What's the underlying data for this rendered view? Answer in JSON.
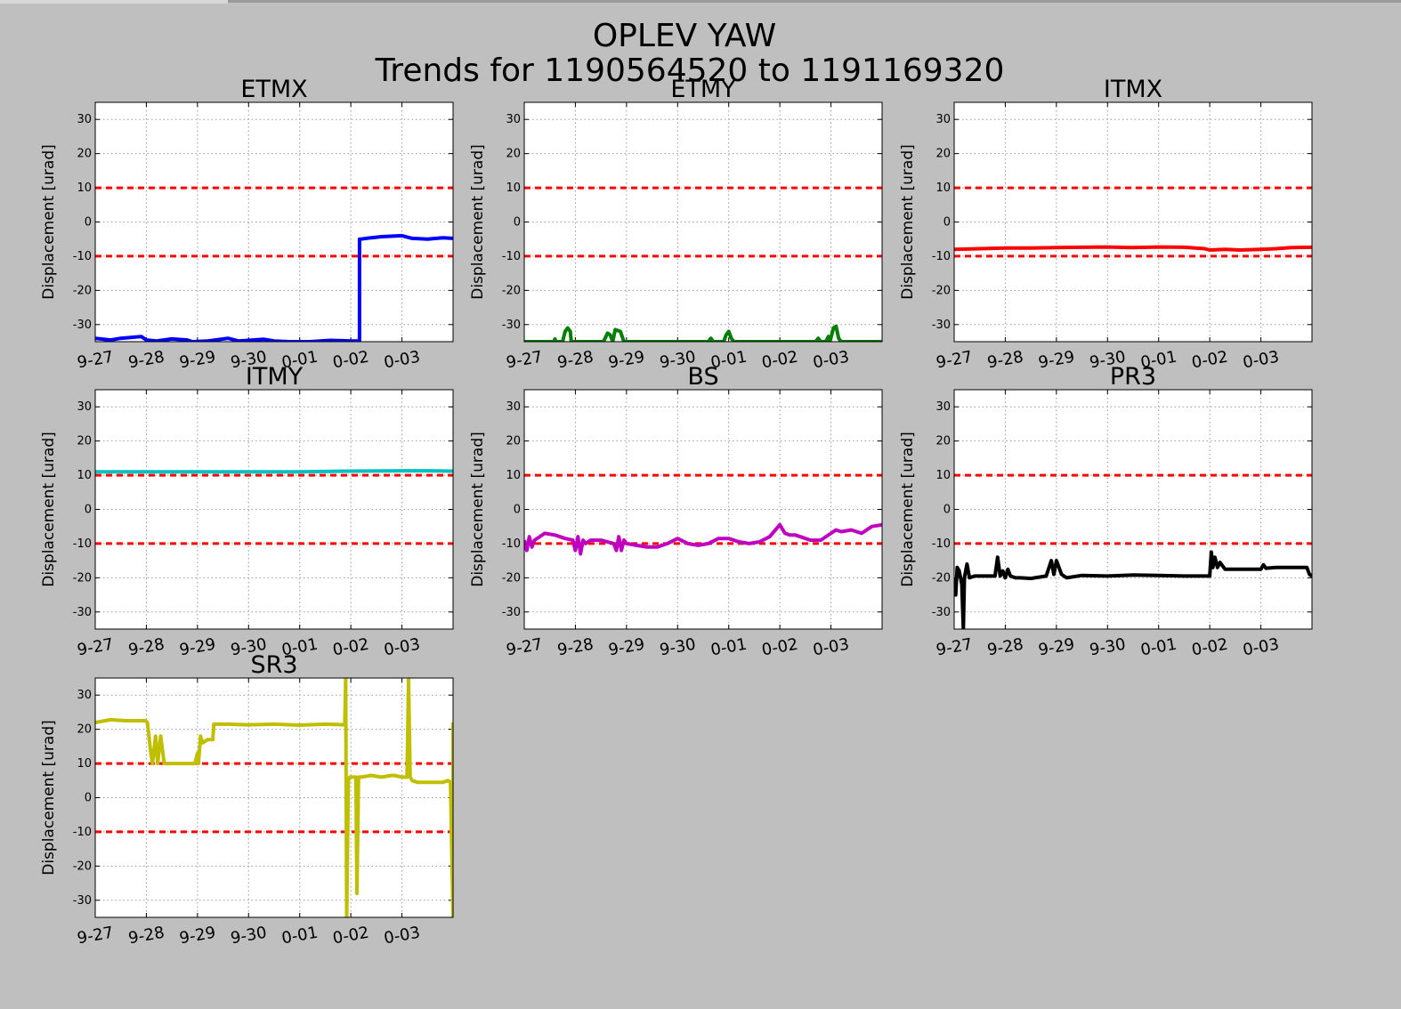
{
  "figure": {
    "title_line1": "OPLEV YAW",
    "title_line2": "Trends for 1190564520 to 1191169320"
  },
  "colors": {
    "background": "#bfbfbf",
    "plot_area": "#ffffff",
    "threshold": "#ff0000",
    "grid": "#999999"
  },
  "chart_data": [
    {
      "type": "line",
      "title": "ETMX",
      "ylabel": "Displacement [urad]",
      "xticks": [
        "9-27",
        "9-28",
        "9-29",
        "9-30",
        "0-01",
        "0-02",
        "0-03"
      ],
      "yticks": [
        30,
        20,
        10,
        0,
        -10,
        -20,
        -30
      ],
      "ylim": [
        -35,
        35
      ],
      "xlim": [
        0,
        7
      ],
      "grid": true,
      "thresholds": [
        10,
        -10
      ],
      "color": "#0000ff",
      "x": [
        0,
        0.3,
        0.5,
        0.9,
        1.0,
        1.2,
        1.5,
        1.8,
        1.9,
        2.2,
        2.6,
        2.8,
        3.0,
        3.3,
        3.5,
        3.8,
        4.2,
        4.6,
        5.0,
        5.17,
        5.17,
        5.2,
        5.4,
        5.6,
        6.0,
        6.2,
        6.5,
        6.8,
        7.0
      ],
      "y": [
        -34,
        -34.5,
        -34,
        -33.5,
        -34.5,
        -34.8,
        -34.2,
        -34.5,
        -35,
        -34.8,
        -34,
        -34.8,
        -34.6,
        -34.3,
        -34.8,
        -35,
        -35,
        -34.6,
        -34.8,
        -34.8,
        -5,
        -5,
        -4.6,
        -4.3,
        -4,
        -4.8,
        -5,
        -4.6,
        -4.8
      ]
    },
    {
      "type": "line",
      "title": "ETMY",
      "ylabel": "Displacement [urad]",
      "xticks": [
        "9-27",
        "9-28",
        "9-29",
        "9-30",
        "0-01",
        "0-02",
        "0-03"
      ],
      "yticks": [
        30,
        20,
        10,
        0,
        -10,
        -20,
        -30
      ],
      "ylim": [
        -35,
        35
      ],
      "xlim": [
        0,
        7
      ],
      "grid": true,
      "thresholds": [
        10,
        -10
      ],
      "color": "#007f00",
      "x": [
        0,
        0.58,
        0.6,
        0.62,
        0.75,
        0.8,
        0.85,
        0.9,
        0.92,
        1.0,
        1.55,
        1.63,
        1.68,
        1.73,
        1.78,
        1.88,
        1.95,
        2.0,
        3.6,
        3.65,
        3.7,
        3.75,
        3.9,
        3.95,
        4.0,
        4.05,
        4.1,
        4.2,
        5.7,
        5.75,
        5.8,
        5.9,
        5.95,
        5.98,
        6.05,
        6.1,
        6.15,
        6.2,
        7.0
      ],
      "y": [
        -35,
        -35,
        -34.2,
        -35,
        -35,
        -32,
        -31,
        -32,
        -35,
        -35,
        -35,
        -32.5,
        -33,
        -35,
        -31.5,
        -32,
        -35,
        -35,
        -35,
        -34,
        -35,
        -35,
        -35,
        -33,
        -32,
        -34,
        -35,
        -35,
        -35,
        -34,
        -35,
        -35,
        -33.5,
        -35,
        -31,
        -30.5,
        -34,
        -35,
        -35
      ]
    },
    {
      "type": "line",
      "title": "ITMX",
      "ylabel": "Displacement [urad]",
      "xticks": [
        "9-27",
        "9-28",
        "9-29",
        "9-30",
        "0-01",
        "0-02",
        "0-03"
      ],
      "yticks": [
        30,
        20,
        10,
        0,
        -10,
        -20,
        -30
      ],
      "ylim": [
        -35,
        35
      ],
      "xlim": [
        0,
        7
      ],
      "grid": true,
      "thresholds": [
        10,
        -10
      ],
      "color": "#ff0000",
      "x": [
        0,
        0.5,
        1.0,
        1.5,
        2.0,
        2.5,
        3.0,
        3.5,
        4.0,
        4.5,
        4.9,
        5.0,
        5.3,
        5.6,
        6.0,
        6.3,
        6.6,
        7.0
      ],
      "y": [
        -8,
        -7.8,
        -7.6,
        -7.6,
        -7.5,
        -7.4,
        -7.3,
        -7.5,
        -7.3,
        -7.4,
        -7.8,
        -8.2,
        -8,
        -8.2,
        -8,
        -7.8,
        -7.5,
        -7.4
      ]
    },
    {
      "type": "line",
      "title": "ITMY",
      "ylabel": "Displacement [urad]",
      "xticks": [
        "9-27",
        "9-28",
        "9-29",
        "9-30",
        "0-01",
        "0-02",
        "0-03"
      ],
      "yticks": [
        30,
        20,
        10,
        0,
        -10,
        -20,
        -30
      ],
      "ylim": [
        -35,
        35
      ],
      "xlim": [
        0,
        7
      ],
      "grid": true,
      "thresholds": [
        10,
        -10
      ],
      "color": "#00bfbf",
      "x": [
        0,
        1,
        2,
        3,
        4,
        5,
        6,
        6.5,
        7.0
      ],
      "y": [
        11,
        11,
        11,
        11,
        11,
        11.2,
        11.3,
        11.3,
        11.2
      ]
    },
    {
      "type": "line",
      "title": "BS",
      "ylabel": "Displacement [urad]",
      "xticks": [
        "9-27",
        "9-28",
        "9-29",
        "9-30",
        "0-01",
        "0-02",
        "0-03"
      ],
      "yticks": [
        30,
        20,
        10,
        0,
        -10,
        -20,
        -30
      ],
      "ylim": [
        -35,
        35
      ],
      "xlim": [
        0,
        7
      ],
      "grid": true,
      "thresholds": [
        10,
        -10
      ],
      "color": "#bf00bf",
      "x": [
        0,
        0.05,
        0.1,
        0.15,
        0.2,
        0.4,
        0.6,
        0.8,
        0.95,
        1.0,
        1.05,
        1.1,
        1.15,
        1.2,
        1.3,
        1.5,
        1.75,
        1.8,
        1.85,
        1.9,
        1.95,
        2.0,
        2.2,
        2.4,
        2.6,
        2.8,
        3.0,
        3.2,
        3.4,
        3.6,
        3.8,
        4.0,
        4.2,
        4.4,
        4.6,
        4.8,
        5.0,
        5.1,
        5.2,
        5.3,
        5.4,
        5.6,
        5.8,
        6.0,
        6.1,
        6.2,
        6.4,
        6.6,
        6.8,
        7.0
      ],
      "y": [
        -9,
        -12,
        -8,
        -11,
        -9,
        -7,
        -7.5,
        -8.5,
        -9,
        -12,
        -8,
        -13,
        -9,
        -10,
        -9,
        -9,
        -10,
        -12,
        -8,
        -12,
        -9,
        -10,
        -10.5,
        -11,
        -11,
        -10,
        -8.5,
        -10,
        -10.5,
        -10,
        -8.5,
        -8.5,
        -9.5,
        -10,
        -9.5,
        -8,
        -4.5,
        -7,
        -7.5,
        -7.5,
        -8,
        -9,
        -9,
        -7,
        -6,
        -6.5,
        -6,
        -7,
        -5,
        -4.5
      ]
    },
    {
      "type": "line",
      "title": "PR3",
      "ylabel": "Displacement [urad]",
      "xticks": [
        "9-27",
        "9-28",
        "9-29",
        "9-30",
        "0-01",
        "0-02",
        "0-03"
      ],
      "yticks": [
        30,
        20,
        10,
        0,
        -10,
        -20,
        -30
      ],
      "ylim": [
        -35,
        35
      ],
      "xlim": [
        0,
        7
      ],
      "grid": true,
      "thresholds": [
        10,
        -10
      ],
      "color": "#000000",
      "x": [
        0,
        0.03,
        0.06,
        0.1,
        0.15,
        0.18,
        0.2,
        0.25,
        0.3,
        0.4,
        0.5,
        0.6,
        0.8,
        0.85,
        0.9,
        0.95,
        1.0,
        1.05,
        1.1,
        1.2,
        1.3,
        1.5,
        1.8,
        1.9,
        1.95,
        2.0,
        2.1,
        2.2,
        2.5,
        3.0,
        3.5,
        4.0,
        4.5,
        5.0,
        5.03,
        5.06,
        5.1,
        5.15,
        5.2,
        5.3,
        5.5,
        6.0,
        6.05,
        6.1,
        6.3,
        6.5,
        6.9,
        6.95,
        7.0
      ],
      "y": [
        -20,
        -25,
        -17,
        -18,
        -22,
        -35,
        -20,
        -16,
        -20,
        -19.5,
        -19.5,
        -19.5,
        -19.5,
        -14,
        -19.5,
        -18,
        -20,
        -17.5,
        -19.5,
        -20,
        -20,
        -20.2,
        -19.5,
        -15,
        -19,
        -15,
        -19,
        -20,
        -19.3,
        -19.5,
        -19.2,
        -19.3,
        -19.5,
        -19.5,
        -12.5,
        -17,
        -14,
        -17,
        -15.5,
        -17.5,
        -17.5,
        -17.5,
        -16.2,
        -17.2,
        -17,
        -17,
        -17,
        -19,
        -19.5
      ]
    },
    {
      "type": "line",
      "title": "SR3",
      "ylabel": "Displacement [urad]",
      "xticks": [
        "9-27",
        "9-28",
        "9-29",
        "9-30",
        "0-01",
        "0-02",
        "0-03"
      ],
      "yticks": [
        30,
        20,
        10,
        0,
        -10,
        -20,
        -30
      ],
      "ylim": [
        -35,
        35
      ],
      "xlim": [
        0,
        7
      ],
      "grid": true,
      "thresholds": [
        10,
        -10
      ],
      "color": "#bfbf00",
      "x": [
        0,
        0.3,
        0.6,
        0.9,
        0.98,
        1.02,
        1.08,
        1.12,
        1.18,
        1.22,
        1.28,
        1.35,
        1.5,
        1.75,
        1.95,
        2.0,
        2.02,
        2.06,
        2.1,
        2.2,
        2.3,
        2.32,
        2.6,
        3.0,
        3.5,
        4.0,
        4.5,
        4.88,
        4.9,
        4.92,
        4.95,
        4.98,
        5.1,
        5.12,
        5.15,
        5.2,
        5.4,
        5.6,
        5.8,
        5.85,
        6.0,
        6.1,
        6.13,
        6.16,
        6.2,
        6.3,
        6.5,
        6.8,
        6.9,
        6.95,
        7.0,
        7.0
      ],
      "y": [
        22,
        22.8,
        22.5,
        22.5,
        22.5,
        22,
        14,
        10,
        18,
        10,
        18,
        10,
        10,
        10,
        10,
        13,
        10,
        18,
        16,
        17,
        17,
        21.5,
        21.5,
        21.3,
        21.5,
        21.2,
        21.5,
        21.3,
        35,
        -35,
        5,
        6,
        6,
        -28,
        6,
        6,
        6.5,
        6,
        6.5,
        6.5,
        6,
        6,
        35,
        6,
        5,
        4.5,
        4.5,
        4.5,
        5,
        4.5,
        -35,
        22
      ]
    }
  ]
}
